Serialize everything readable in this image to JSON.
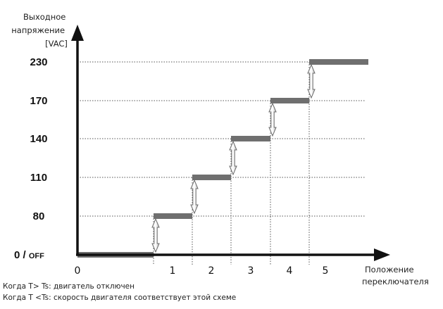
{
  "chart_data": {
    "type": "line",
    "title": "",
    "ylabel": "Выходное напряжение [VAC]",
    "ylabel_lines": [
      "Выходное",
      "напряжение",
      "[VAC]"
    ],
    "xlabel": "Положение переключателя",
    "xlabel_lines": [
      "Положение",
      "переключателя"
    ],
    "y_ticks": [
      "230",
      "170",
      "140",
      "110",
      "80",
      "0 / OFF"
    ],
    "x_ticks": [
      "0",
      "1",
      "2",
      "3",
      "4",
      "5"
    ],
    "series": [
      {
        "switch_positions": [
          "0",
          "1",
          "2",
          "3",
          "4",
          "5"
        ],
        "voltage_labels": [
          "0 / OFF",
          "80",
          "110",
          "140",
          "170",
          "230"
        ]
      }
    ],
    "grid": "dotted horizontal and vertical guide lines",
    "colors": {
      "step_line": "#6f6f6f",
      "axis": "#111111",
      "grid": "#555555"
    }
  },
  "notes": [
    "Когда T> Ts: двигатель отключен",
    "Когда T <Ts: скорость двигателя соответствует этой схеме"
  ]
}
